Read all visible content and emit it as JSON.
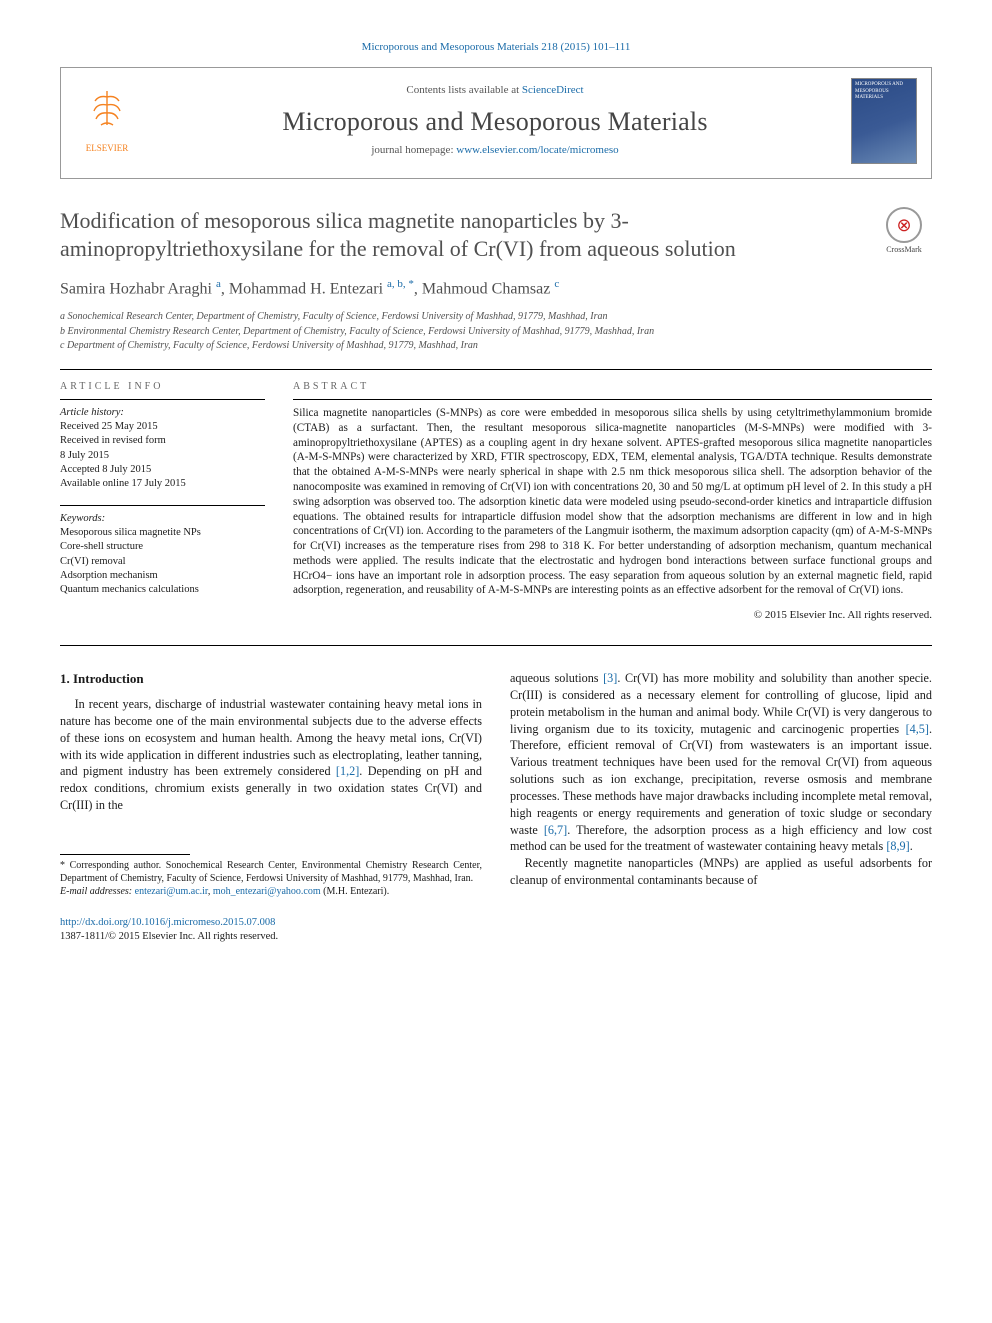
{
  "citation": "Microporous and Mesoporous Materials 218 (2015) 101–111",
  "header": {
    "contents_prefix": "Contents lists available at ",
    "contents_link": "ScienceDirect",
    "journal": "Microporous and Mesoporous Materials",
    "homepage_prefix": "journal homepage: ",
    "homepage_link": "www.elsevier.com/locate/micromeso",
    "publisher": "ELSEVIER",
    "cover_label": "MICROPOROUS AND MESOPOROUS MATERIALS"
  },
  "title": "Modification of mesoporous silica magnetite nanoparticles by 3-aminopropyltriethoxysilane for the removal of Cr(VI) from aqueous solution",
  "crossmark": "CrossMark",
  "authors_html": "Samira Hozhabr Araghi <sup>a</sup>, Mohammad H. Entezari <sup>a, b, *</sup>, Mahmoud Chamsaz <sup>c</sup>",
  "affiliations": [
    "a Sonochemical Research Center, Department of Chemistry, Faculty of Science, Ferdowsi University of Mashhad, 91779, Mashhad, Iran",
    "b Environmental Chemistry Research Center, Department of Chemistry, Faculty of Science, Ferdowsi University of Mashhad, 91779, Mashhad, Iran",
    "c Department of Chemistry, Faculty of Science, Ferdowsi University of Mashhad, 91779, Mashhad, Iran"
  ],
  "info": {
    "label": "ARTICLE INFO",
    "history_label": "Article history:",
    "history": [
      "Received 25 May 2015",
      "Received in revised form",
      "8 July 2015",
      "Accepted 8 July 2015",
      "Available online 17 July 2015"
    ],
    "keywords_label": "Keywords:",
    "keywords": [
      "Mesoporous silica magnetite NPs",
      "Core-shell structure",
      "Cr(VI) removal",
      "Adsorption mechanism",
      "Quantum mechanics calculations"
    ]
  },
  "abstract": {
    "label": "ABSTRACT",
    "text": "Silica magnetite nanoparticles (S-MNPs) as core were embedded in mesoporous silica shells by using cetyltrimethylammonium bromide (CTAB) as a surfactant. Then, the resultant mesoporous silica-magnetite nanoparticles (M-S-MNPs) were modified with 3-aminopropyltriethoxysilane (APTES) as a coupling agent in dry hexane solvent. APTES-grafted mesoporous silica magnetite nanoparticles (A-M-S-MNPs) were characterized by XRD, FTIR spectroscopy, EDX, TEM, elemental analysis, TGA/DTA technique. Results demonstrate that the obtained A-M-S-MNPs were nearly spherical in shape with 2.5 nm thick mesoporous silica shell. The adsorption behavior of the nanocomposite was examined in removing of Cr(VI) ion with concentrations 20, 30 and 50 mg/L at optimum pH level of 2. In this study a pH swing adsorption was observed too. The adsorption kinetic data were modeled using pseudo-second-order kinetics and intraparticle diffusion equations. The obtained results for intraparticle diffusion model show that the adsorption mechanisms are different in low and in high concentrations of Cr(VI) ion. According to the parameters of the Langmuir isotherm, the maximum adsorption capacity (qm) of A-M-S-MNPs for Cr(VI) increases as the temperature rises from 298 to 318 K. For better understanding of adsorption mechanism, quantum mechanical methods were applied. The results indicate that the electrostatic and hydrogen bond interactions between surface functional groups and HCrO4− ions have an important role in adsorption process. The easy separation from aqueous solution by an external magnetic field, rapid adsorption, regeneration, and reusability of A-M-S-MNPs are interesting points as an effective adsorbent for the removal of Cr(VI) ions.",
    "copyright": "© 2015 Elsevier Inc. All rights reserved."
  },
  "section1": {
    "heading": "1. Introduction",
    "p1a": "In recent years, discharge of industrial wastewater containing heavy metal ions in nature has become one of the main environmental subjects due to the adverse effects of these ions on ecosystem and human health. Among the heavy metal ions, Cr(VI) with its wide application in different industries such as electroplating, leather tanning, and pigment industry has been extremely considered ",
    "r12": "[1,2]",
    "p1b": ". Depending on pH and redox conditions, chromium exists generally in two oxidation states Cr(VI) and Cr(III) in the",
    "p2a": "aqueous solutions ",
    "r3": "[3]",
    "p2b": ". Cr(VI) has more mobility and solubility than another specie. Cr(III) is considered as a necessary element for controlling of glucose, lipid and protein metabolism in the human and animal body. While Cr(VI) is very dangerous to living organism due to its toxicity, mutagenic and carcinogenic properties ",
    "r45": "[4,5]",
    "p2c": ". Therefore, efficient removal of Cr(VI) from wastewaters is an important issue. Various treatment techniques have been used for the removal Cr(VI) from aqueous solutions such as ion exchange, precipitation, reverse osmosis and membrane processes. These methods have major drawbacks including incomplete metal removal, high reagents or energy requirements and generation of toxic sludge or secondary waste ",
    "r67": "[6,7]",
    "p2d": ". Therefore, the adsorption process as a high efficiency and low cost method can be used for the treatment of wastewater containing heavy metals ",
    "r89": "[8,9]",
    "p2e": ".",
    "p3": "Recently magnetite nanoparticles (MNPs) are applied as useful adsorbents for cleanup of environmental contaminants because of"
  },
  "footnotes": {
    "corr": "* Corresponding author. Sonochemical Research Center, Environmental Chemistry Research Center, Department of Chemistry, Faculty of Science, Ferdowsi University of Mashhad, 91779, Mashhad, Iran.",
    "email_label": "E-mail addresses: ",
    "email1": "entezari@um.ac.ir",
    "email_sep": ", ",
    "email2": "moh_entezari@yahoo.com",
    "email_tail": " (M.H. Entezari)."
  },
  "footer": {
    "doi": "http://dx.doi.org/10.1016/j.micromeso.2015.07.008",
    "issn_line": "1387-1811/© 2015 Elsevier Inc. All rights reserved."
  },
  "colors": {
    "link": "#1a6ba8",
    "text": "#1a1a1a",
    "heading": "#505050",
    "elsevier": "#f58220"
  }
}
